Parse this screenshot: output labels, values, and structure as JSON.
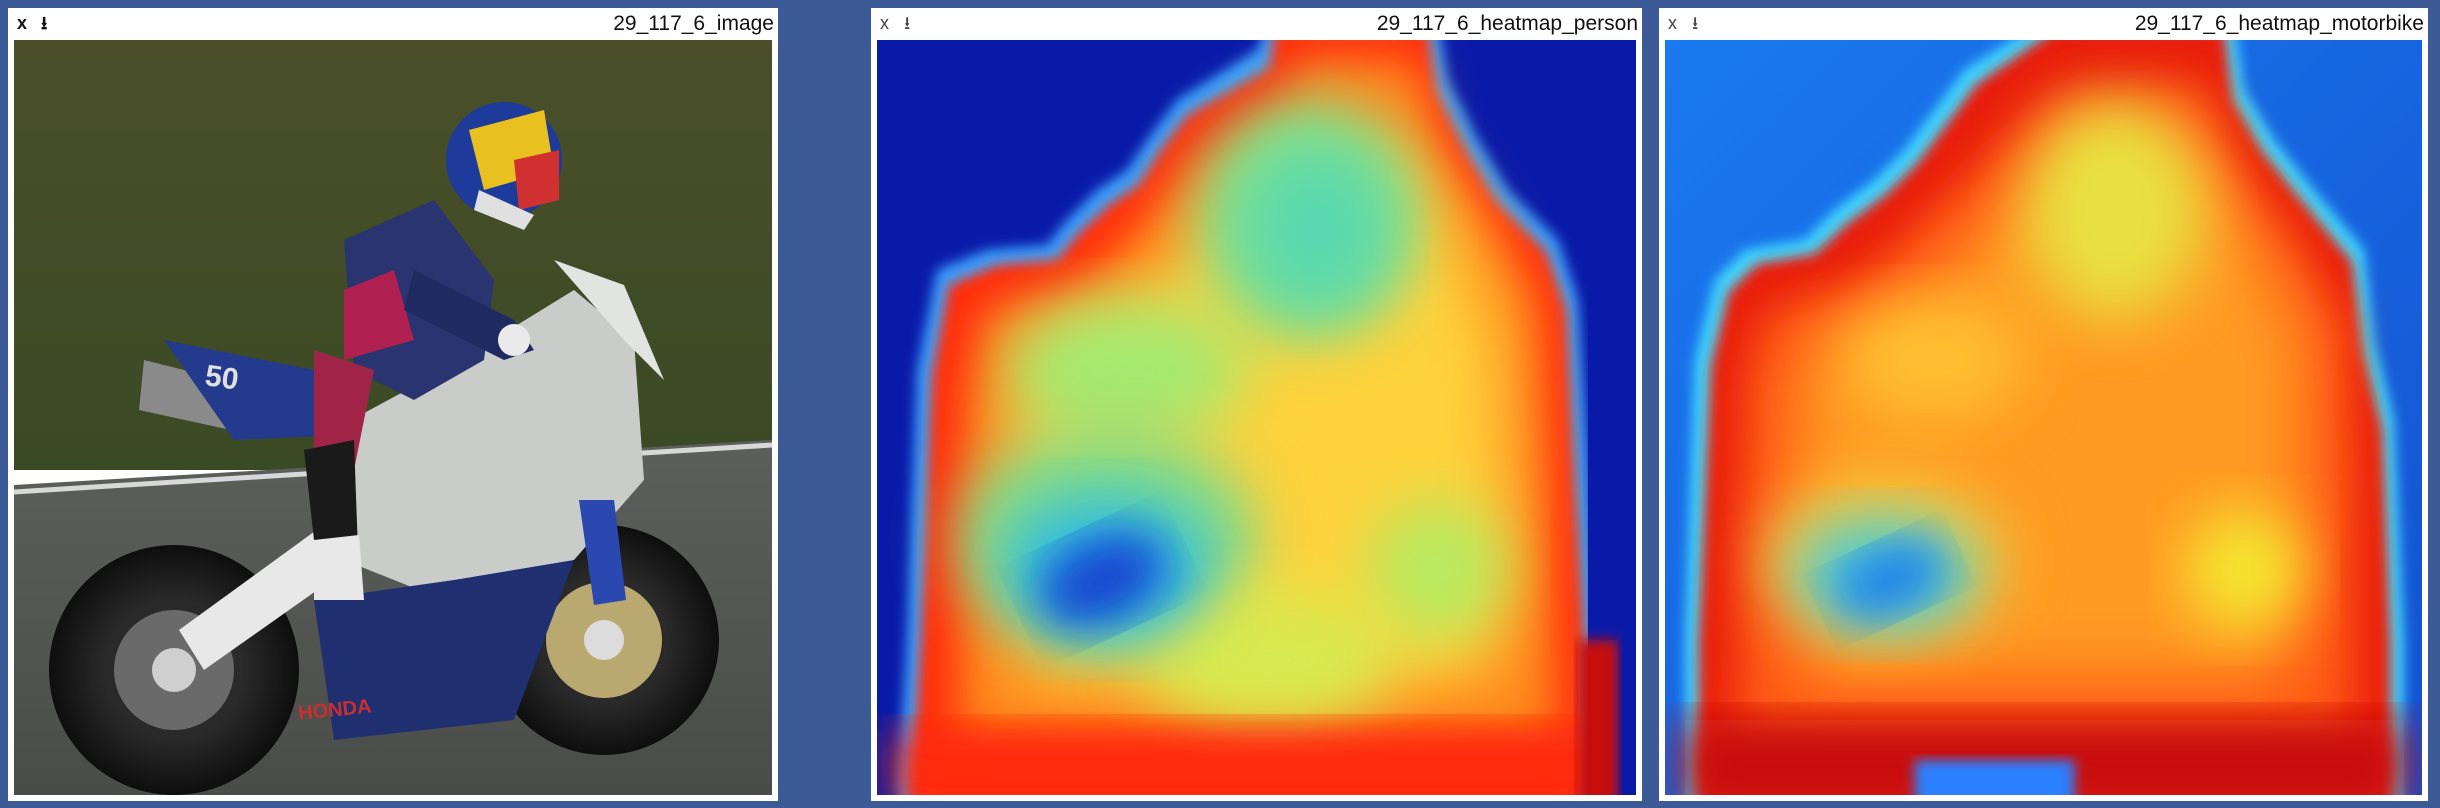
{
  "panels": [
    {
      "title": "29_117_6_image",
      "close_label": "x",
      "download_label": "⭳",
      "close_icon": "close-icon",
      "download_icon": "download-icon",
      "content": "photo"
    },
    {
      "title": "29_117_6_heatmap_person",
      "close_label": "x",
      "download_label": "⭳",
      "close_icon": "close-icon",
      "download_icon": "download-icon",
      "content": "heatmap"
    },
    {
      "title": "29_117_6_heatmap_motorbike",
      "close_label": "x",
      "download_label": "⭳",
      "close_icon": "close-icon",
      "download_icon": "download-icon",
      "content": "heatmap"
    }
  ],
  "colors": {
    "background": "#3b5a96",
    "heatmap_low": "#0a1aa8",
    "heatmap_mid": "#7ee08a",
    "heatmap_high": "#c80a0a",
    "heatmap_hot": "#ff8a1a"
  }
}
